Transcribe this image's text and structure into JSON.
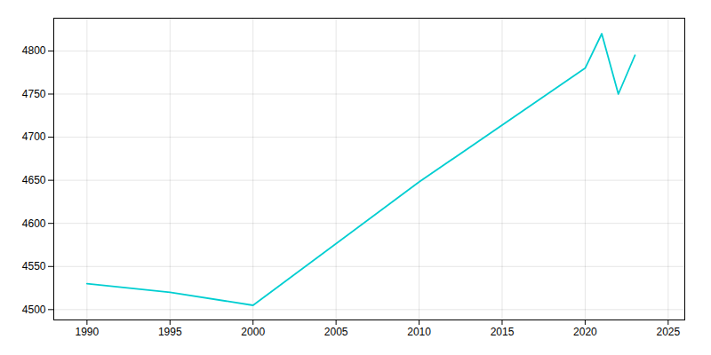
{
  "chart_data": {
    "type": "line",
    "x": [
      1990,
      1995,
      2000,
      2010,
      2020,
      2021,
      2022,
      2023
    ],
    "values": [
      4530,
      4520,
      4505,
      4648,
      4780,
      4820,
      4750,
      4795
    ],
    "color": "#00CED1",
    "xlim": [
      1988,
      2026
    ],
    "ylim": [
      4488,
      4838
    ],
    "xticks": [
      1990,
      1995,
      2000,
      2005,
      2010,
      2015,
      2020,
      2025
    ],
    "yticks": [
      4500,
      4550,
      4600,
      4650,
      4700,
      4750,
      4800
    ],
    "grid": true
  }
}
